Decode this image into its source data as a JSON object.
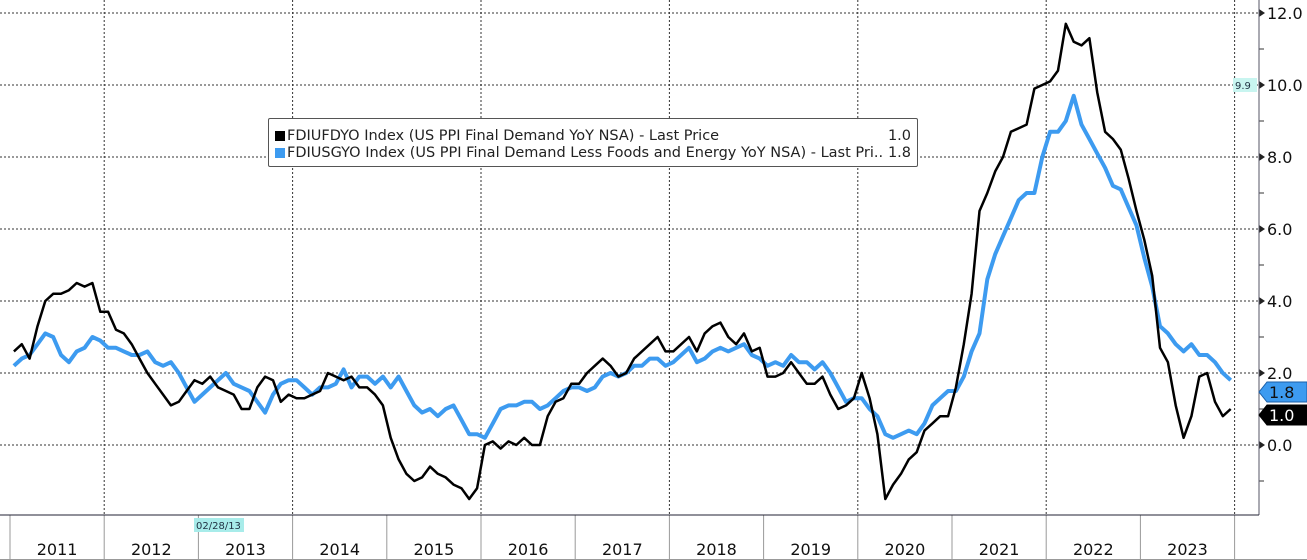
{
  "chart_data": {
    "type": "line",
    "title": "",
    "xlabel": "",
    "ylabel": "",
    "x_start": "2011-01",
    "x_end": "2023-12",
    "frequency": "monthly",
    "x_tick_labels": [
      "2011",
      "2012",
      "2013",
      "2014",
      "2015",
      "2016",
      "2017",
      "2018",
      "2019",
      "2020",
      "2021",
      "2022",
      "2023"
    ],
    "y_tick_labels": [
      "12.0",
      "10.0",
      "8.0",
      "6.0",
      "4.0",
      "2.0",
      "0.0"
    ],
    "ylim": [
      -2,
      12.4
    ],
    "grid": true,
    "legend_placement": "top-center",
    "cursor_date_label": "02/28/13",
    "cursor_value_label": "9.9",
    "series": [
      {
        "name": "FDIUFDYO Index (US PPI Final Demand YoY NSA) - Last Price",
        "last": "1.0",
        "color": "#000000",
        "values": [
          2.6,
          2.8,
          2.4,
          3.3,
          4.0,
          4.2,
          4.2,
          4.3,
          4.5,
          4.4,
          4.5,
          3.7,
          3.7,
          3.2,
          3.1,
          2.8,
          2.4,
          2.0,
          1.7,
          1.4,
          1.1,
          1.2,
          1.5,
          1.8,
          1.7,
          1.9,
          1.6,
          1.5,
          1.4,
          1.0,
          1.0,
          1.6,
          1.9,
          1.8,
          1.2,
          1.4,
          1.3,
          1.3,
          1.4,
          1.5,
          2.0,
          1.9,
          1.8,
          1.9,
          1.6,
          1.6,
          1.4,
          1.1,
          0.2,
          -0.4,
          -0.8,
          -1.0,
          -0.9,
          -0.6,
          -0.8,
          -0.9,
          -1.1,
          -1.2,
          -1.5,
          -1.2,
          0.0,
          0.1,
          -0.1,
          0.1,
          0.0,
          0.2,
          0.0,
          0.0,
          0.8,
          1.2,
          1.3,
          1.7,
          1.7,
          2.0,
          2.2,
          2.4,
          2.2,
          1.9,
          2.0,
          2.4,
          2.6,
          2.8,
          3.0,
          2.6,
          2.6,
          2.8,
          3.0,
          2.6,
          3.1,
          3.3,
          3.4,
          3.0,
          2.8,
          3.1,
          2.6,
          2.7,
          1.9,
          1.9,
          2.0,
          2.3,
          2.0,
          1.7,
          1.7,
          1.9,
          1.4,
          1.0,
          1.1,
          1.3,
          2.0,
          1.3,
          0.3,
          -1.5,
          -1.1,
          -0.8,
          -0.4,
          -0.2,
          0.4,
          0.6,
          0.8,
          0.8,
          1.6,
          2.8,
          4.2,
          6.5,
          7.0,
          7.6,
          8.0,
          8.7,
          8.8,
          8.9,
          9.9,
          10.0,
          10.1,
          10.4,
          11.7,
          11.2,
          11.1,
          11.3,
          9.8,
          8.7,
          8.5,
          8.2,
          7.4,
          6.5,
          5.7,
          4.7,
          2.7,
          2.3,
          1.1,
          0.2,
          0.8,
          1.9,
          2.0,
          1.2,
          0.8,
          1.0
        ]
      },
      {
        "name": "FDIUSGYO Index (US PPI Final Demand Less Foods and Energy YoY NSA) - Last Pri...",
        "last": "1.8",
        "color": "#3d9bf0",
        "values": [
          2.2,
          2.4,
          2.5,
          2.8,
          3.1,
          3.0,
          2.5,
          2.3,
          2.6,
          2.7,
          3.0,
          2.9,
          2.7,
          2.7,
          2.6,
          2.5,
          2.5,
          2.6,
          2.3,
          2.2,
          2.3,
          2.0,
          1.6,
          1.2,
          1.4,
          1.6,
          1.8,
          2.0,
          1.7,
          1.6,
          1.5,
          1.2,
          0.9,
          1.4,
          1.7,
          1.8,
          1.8,
          1.6,
          1.4,
          1.6,
          1.6,
          1.7,
          2.1,
          1.6,
          1.9,
          1.9,
          1.7,
          1.9,
          1.6,
          1.9,
          1.5,
          1.1,
          0.9,
          1.0,
          0.8,
          1.0,
          1.1,
          0.7,
          0.3,
          0.3,
          0.2,
          0.6,
          1.0,
          1.1,
          1.1,
          1.2,
          1.2,
          1.0,
          1.1,
          1.3,
          1.5,
          1.6,
          1.6,
          1.5,
          1.6,
          1.9,
          2.0,
          1.9,
          2.0,
          2.2,
          2.2,
          2.4,
          2.4,
          2.2,
          2.3,
          2.5,
          2.7,
          2.3,
          2.4,
          2.6,
          2.7,
          2.6,
          2.7,
          2.8,
          2.5,
          2.4,
          2.2,
          2.3,
          2.2,
          2.5,
          2.3,
          2.3,
          2.1,
          2.3,
          2.0,
          1.6,
          1.2,
          1.3,
          1.3,
          1.0,
          0.8,
          0.3,
          0.2,
          0.3,
          0.4,
          0.3,
          0.6,
          1.1,
          1.3,
          1.5,
          1.5,
          1.9,
          2.6,
          3.1,
          4.6,
          5.3,
          5.8,
          6.3,
          6.8,
          7.0,
          7.0,
          8.0,
          8.7,
          8.7,
          9.0,
          9.7,
          8.9,
          8.5,
          8.1,
          7.7,
          7.2,
          7.1,
          6.6,
          6.1,
          5.2,
          4.4,
          3.3,
          3.1,
          2.8,
          2.6,
          2.8,
          2.5,
          2.5,
          2.3,
          2.0,
          1.8
        ]
      }
    ]
  }
}
